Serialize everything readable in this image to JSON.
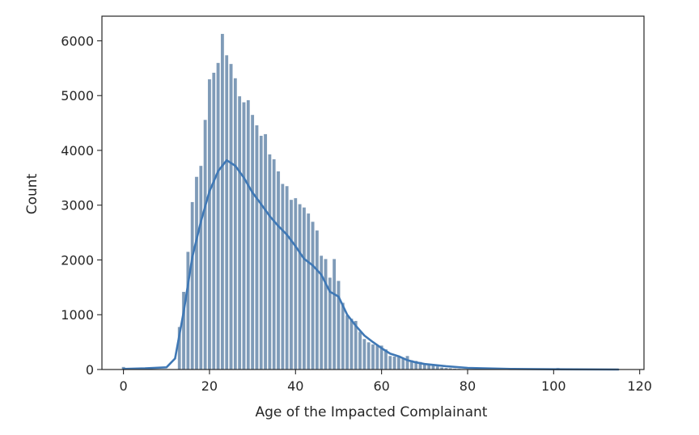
{
  "chart_data": {
    "type": "bar",
    "title": "",
    "xlabel": "Age of the Impacted Complainant",
    "ylabel": "Count",
    "xlim": [
      -5,
      121
    ],
    "ylim": [
      0,
      6450
    ],
    "xticks": [
      0,
      20,
      40,
      60,
      80,
      100,
      120
    ],
    "yticks": [
      0,
      1000,
      2000,
      3000,
      4000,
      5000,
      6000
    ],
    "grid": false,
    "legend": "none",
    "bar_color": "#7f9bb8",
    "bar_edge_color": "#ffffff",
    "kde_color": "#3f78b5",
    "bin_width": 0.8,
    "bars": [
      {
        "x": 0,
        "value": 50
      },
      {
        "x": 13,
        "value": 780
      },
      {
        "x": 14,
        "value": 1420
      },
      {
        "x": 15,
        "value": 2150
      },
      {
        "x": 16,
        "value": 3060
      },
      {
        "x": 17,
        "value": 3520
      },
      {
        "x": 18,
        "value": 3720
      },
      {
        "x": 19,
        "value": 4560
      },
      {
        "x": 20,
        "value": 5300
      },
      {
        "x": 21,
        "value": 5420
      },
      {
        "x": 22,
        "value": 5600
      },
      {
        "x": 23,
        "value": 6130
      },
      {
        "x": 24,
        "value": 5740
      },
      {
        "x": 25,
        "value": 5580
      },
      {
        "x": 26,
        "value": 5320
      },
      {
        "x": 27,
        "value": 4990
      },
      {
        "x": 28,
        "value": 4880
      },
      {
        "x": 29,
        "value": 4920
      },
      {
        "x": 30,
        "value": 4650
      },
      {
        "x": 31,
        "value": 4460
      },
      {
        "x": 32,
        "value": 4270
      },
      {
        "x": 33,
        "value": 4300
      },
      {
        "x": 34,
        "value": 3930
      },
      {
        "x": 35,
        "value": 3840
      },
      {
        "x": 36,
        "value": 3620
      },
      {
        "x": 37,
        "value": 3390
      },
      {
        "x": 38,
        "value": 3350
      },
      {
        "x": 39,
        "value": 3100
      },
      {
        "x": 40,
        "value": 3130
      },
      {
        "x": 41,
        "value": 3020
      },
      {
        "x": 42,
        "value": 2960
      },
      {
        "x": 43,
        "value": 2850
      },
      {
        "x": 44,
        "value": 2700
      },
      {
        "x": 45,
        "value": 2540
      },
      {
        "x": 46,
        "value": 2080
      },
      {
        "x": 47,
        "value": 2020
      },
      {
        "x": 48,
        "value": 1680
      },
      {
        "x": 49,
        "value": 2020
      },
      {
        "x": 50,
        "value": 1620
      },
      {
        "x": 51,
        "value": 1220
      },
      {
        "x": 52,
        "value": 990
      },
      {
        "x": 53,
        "value": 930
      },
      {
        "x": 54,
        "value": 890
      },
      {
        "x": 55,
        "value": 690
      },
      {
        "x": 56,
        "value": 560
      },
      {
        "x": 57,
        "value": 500
      },
      {
        "x": 58,
        "value": 460
      },
      {
        "x": 59,
        "value": 440
      },
      {
        "x": 60,
        "value": 440
      },
      {
        "x": 61,
        "value": 370
      },
      {
        "x": 62,
        "value": 250
      },
      {
        "x": 63,
        "value": 240
      },
      {
        "x": 64,
        "value": 230
      },
      {
        "x": 65,
        "value": 220
      },
      {
        "x": 66,
        "value": 250
      },
      {
        "x": 67,
        "value": 170
      },
      {
        "x": 68,
        "value": 160
      },
      {
        "x": 69,
        "value": 140
      },
      {
        "x": 70,
        "value": 120
      },
      {
        "x": 71,
        "value": 90
      },
      {
        "x": 72,
        "value": 80
      },
      {
        "x": 73,
        "value": 60
      },
      {
        "x": 74,
        "value": 40
      },
      {
        "x": 75,
        "value": 30
      },
      {
        "x": 76,
        "value": 25
      },
      {
        "x": 77,
        "value": 20
      },
      {
        "x": 78,
        "value": 15
      },
      {
        "x": 79,
        "value": 10
      },
      {
        "x": 80,
        "value": 8
      },
      {
        "x": 82,
        "value": 6
      },
      {
        "x": 84,
        "value": 5
      },
      {
        "x": 86,
        "value": 4
      },
      {
        "x": 88,
        "value": 3
      },
      {
        "x": 90,
        "value": 3
      },
      {
        "x": 95,
        "value": 2
      },
      {
        "x": 100,
        "value": 15
      },
      {
        "x": 101,
        "value": 30
      },
      {
        "x": 105,
        "value": 5
      },
      {
        "x": 110,
        "value": 5
      },
      {
        "x": 115,
        "value": 10
      }
    ],
    "kde": {
      "x": [
        0,
        5,
        10,
        12,
        14,
        16,
        18,
        20,
        22,
        24,
        26,
        28,
        30,
        32,
        34,
        36,
        38,
        40,
        42,
        44,
        46,
        48,
        50,
        52,
        54,
        56,
        58,
        60,
        62,
        64,
        66,
        68,
        70,
        75,
        80,
        90,
        100,
        115
      ],
      "y": [
        10,
        20,
        40,
        200,
        1050,
        2050,
        2700,
        3250,
        3620,
        3820,
        3720,
        3500,
        3230,
        3020,
        2800,
        2620,
        2460,
        2250,
        2020,
        1900,
        1730,
        1420,
        1330,
        1000,
        800,
        620,
        500,
        390,
        290,
        240,
        170,
        130,
        100,
        60,
        30,
        10,
        5,
        0
      ]
    }
  }
}
